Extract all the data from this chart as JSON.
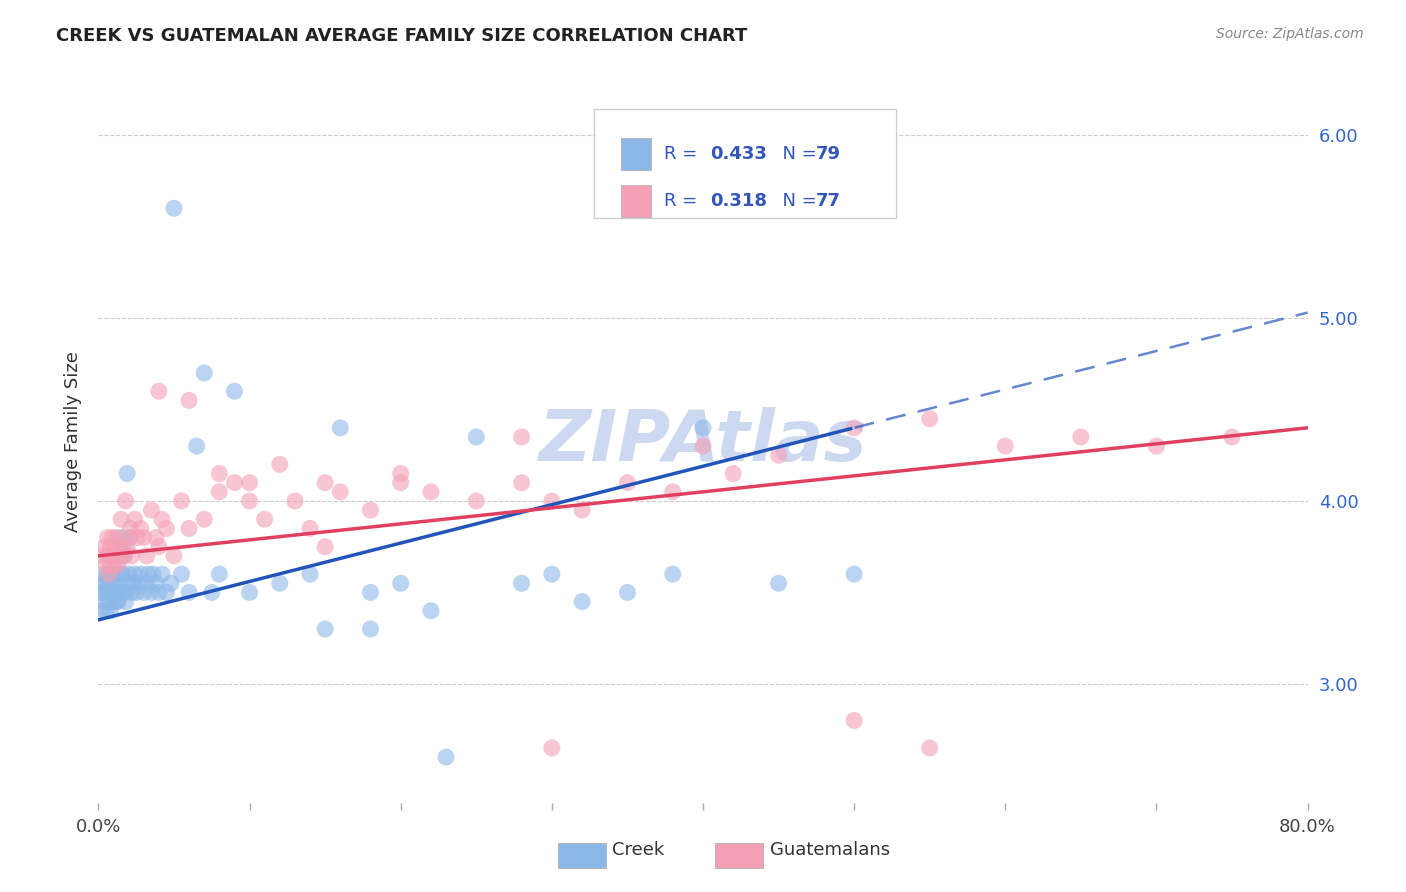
{
  "title": "CREEK VS GUATEMALAN AVERAGE FAMILY SIZE CORRELATION CHART",
  "source": "Source: ZipAtlas.com",
  "ylabel": "Average Family Size",
  "xlim": [
    0.0,
    0.8
  ],
  "ylim": [
    2.35,
    6.3
  ],
  "creek_R": 0.433,
  "creek_N": 79,
  "guatemalan_R": 0.318,
  "guatemalan_N": 77,
  "creek_color": "#8CB8E8",
  "guatemalan_color": "#F4A0B5",
  "creek_line_color": "#2255BB",
  "guatemalan_line_color": "#E04060",
  "legend_text_color": "#3355BB",
  "watermark_color": "#C8D4F0",
  "creek_x": [
    0.001,
    0.002,
    0.003,
    0.003,
    0.004,
    0.004,
    0.005,
    0.005,
    0.006,
    0.006,
    0.007,
    0.007,
    0.008,
    0.008,
    0.009,
    0.009,
    0.01,
    0.01,
    0.011,
    0.012,
    0.012,
    0.013,
    0.013,
    0.014,
    0.014,
    0.015,
    0.015,
    0.016,
    0.016,
    0.017,
    0.018,
    0.018,
    0.019,
    0.02,
    0.02,
    0.021,
    0.022,
    0.023,
    0.024,
    0.025,
    0.027,
    0.028,
    0.03,
    0.032,
    0.033,
    0.035,
    0.036,
    0.038,
    0.04,
    0.042,
    0.045,
    0.048,
    0.05,
    0.055,
    0.06,
    0.065,
    0.07,
    0.075,
    0.08,
    0.09,
    0.1,
    0.12,
    0.14,
    0.16,
    0.18,
    0.2,
    0.22,
    0.25,
    0.28,
    0.3,
    0.32,
    0.35,
    0.38,
    0.4,
    0.45,
    0.5,
    0.15,
    0.18,
    0.23
  ],
  "creek_y": [
    3.5,
    3.4,
    3.55,
    3.6,
    3.45,
    3.5,
    3.55,
    3.4,
    3.5,
    3.6,
    3.45,
    3.5,
    3.55,
    3.4,
    3.5,
    3.6,
    3.45,
    3.5,
    3.55,
    3.45,
    3.5,
    3.6,
    3.45,
    3.5,
    3.55,
    3.6,
    3.8,
    3.5,
    3.6,
    3.7,
    3.5,
    3.45,
    4.15,
    3.6,
    3.55,
    3.8,
    3.5,
    3.55,
    3.6,
    3.5,
    3.55,
    3.6,
    3.5,
    3.55,
    3.6,
    3.5,
    3.6,
    3.55,
    3.5,
    3.6,
    3.5,
    3.55,
    5.6,
    3.6,
    3.5,
    4.3,
    4.7,
    3.5,
    3.6,
    4.6,
    3.5,
    3.55,
    3.6,
    4.4,
    3.5,
    3.55,
    3.4,
    4.35,
    3.55,
    3.6,
    3.45,
    3.5,
    3.6,
    4.4,
    3.55,
    3.6,
    3.3,
    3.3,
    2.6
  ],
  "guatemalan_x": [
    0.002,
    0.004,
    0.005,
    0.006,
    0.007,
    0.007,
    0.008,
    0.008,
    0.009,
    0.009,
    0.01,
    0.01,
    0.011,
    0.012,
    0.013,
    0.013,
    0.014,
    0.015,
    0.015,
    0.016,
    0.017,
    0.018,
    0.019,
    0.02,
    0.021,
    0.022,
    0.024,
    0.026,
    0.028,
    0.03,
    0.032,
    0.035,
    0.038,
    0.04,
    0.042,
    0.045,
    0.05,
    0.055,
    0.06,
    0.07,
    0.08,
    0.09,
    0.1,
    0.11,
    0.12,
    0.13,
    0.14,
    0.15,
    0.16,
    0.18,
    0.2,
    0.22,
    0.25,
    0.28,
    0.3,
    0.32,
    0.35,
    0.38,
    0.4,
    0.42,
    0.45,
    0.5,
    0.55,
    0.6,
    0.65,
    0.7,
    0.75,
    0.5,
    0.55,
    0.3,
    0.28,
    0.04,
    0.06,
    0.08,
    0.1,
    0.15,
    0.2
  ],
  "guatemalan_y": [
    3.7,
    3.75,
    3.65,
    3.8,
    3.7,
    3.6,
    3.75,
    3.65,
    3.7,
    3.8,
    3.65,
    3.75,
    3.7,
    3.8,
    3.7,
    3.65,
    3.75,
    3.7,
    3.9,
    3.75,
    3.7,
    4.0,
    3.75,
    3.8,
    3.85,
    3.7,
    3.9,
    3.8,
    3.85,
    3.8,
    3.7,
    3.95,
    3.8,
    3.75,
    3.9,
    3.85,
    3.7,
    4.0,
    3.85,
    3.9,
    4.05,
    4.1,
    4.0,
    3.9,
    4.2,
    4.0,
    3.85,
    4.1,
    4.05,
    3.95,
    4.1,
    4.05,
    4.0,
    4.1,
    4.0,
    3.95,
    4.1,
    4.05,
    4.3,
    4.15,
    4.25,
    4.4,
    4.45,
    4.3,
    4.35,
    4.3,
    4.35,
    2.8,
    2.65,
    2.65,
    4.35,
    4.6,
    4.55,
    4.15,
    4.1,
    3.75,
    4.15
  ]
}
